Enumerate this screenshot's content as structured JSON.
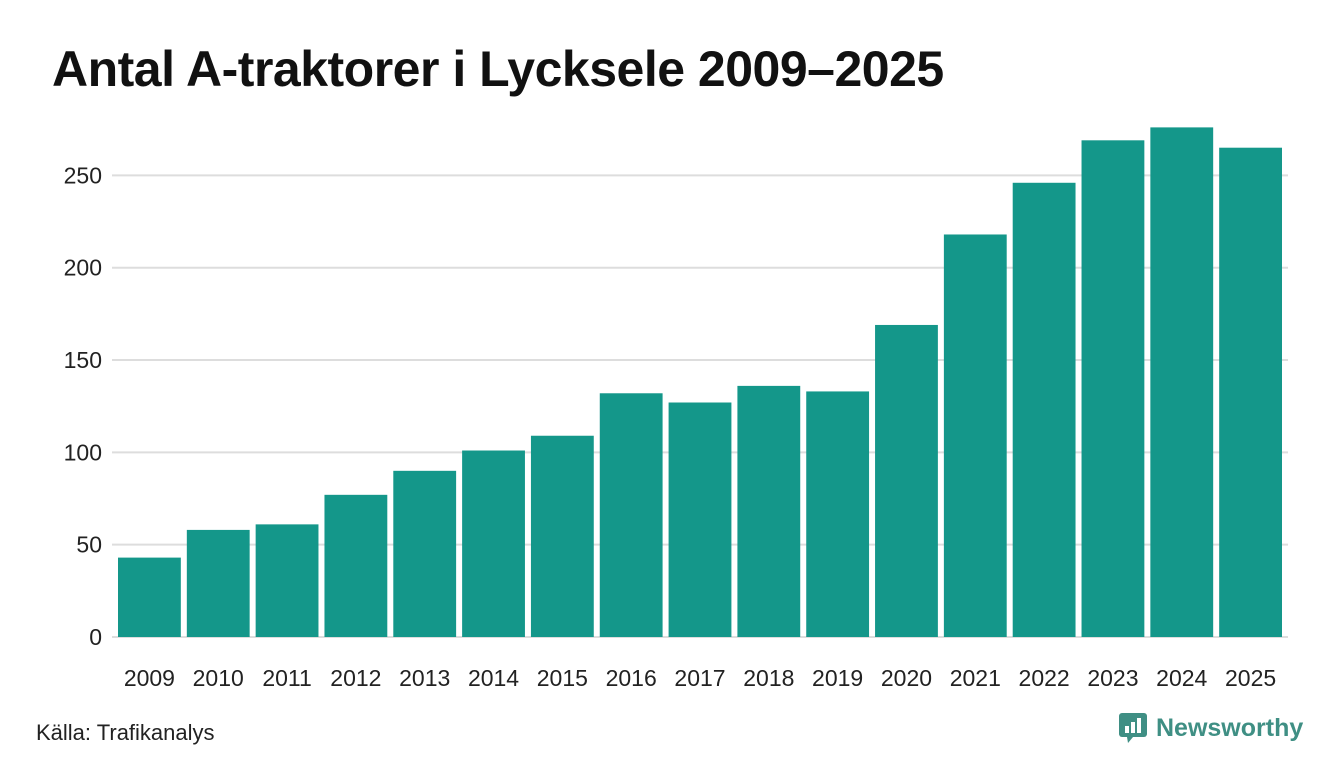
{
  "title": "Antal A-traktorer i Lycksele 2009–2025",
  "source": "Källa: Trafikanalys",
  "brand": {
    "name": "Newsworthy",
    "icon": "newsworthy-logo-icon",
    "color": "#3f8f84"
  },
  "colors": {
    "bar": "#14978a",
    "grid": "#dddddd",
    "text": "#222222"
  },
  "chart_data": {
    "type": "bar",
    "categories": [
      "2009",
      "2010",
      "2011",
      "2012",
      "2013",
      "2014",
      "2015",
      "2016",
      "2017",
      "2018",
      "2019",
      "2020",
      "2021",
      "2022",
      "2023",
      "2024",
      "2025"
    ],
    "values": [
      43,
      58,
      61,
      77,
      90,
      101,
      109,
      132,
      127,
      136,
      133,
      169,
      218,
      246,
      269,
      276,
      265
    ],
    "ylim": [
      0,
      280
    ],
    "yticks": [
      0,
      50,
      100,
      150,
      200,
      250
    ],
    "grid": true,
    "legend": false
  }
}
